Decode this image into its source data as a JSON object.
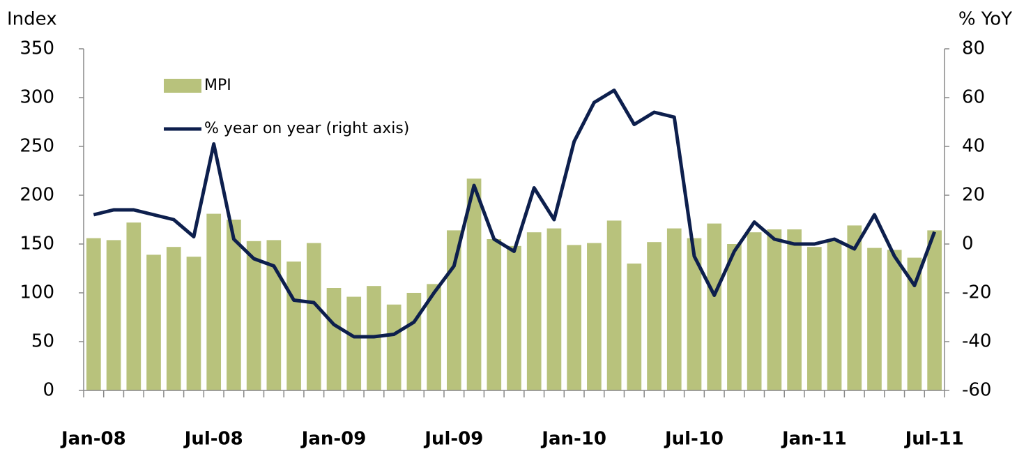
{
  "chart_data": {
    "type": "bar-line",
    "y_label": "Index",
    "y2_label": "% YoY",
    "categories": [
      "Jan-08",
      null,
      null,
      null,
      null,
      null,
      "Jul-08",
      null,
      null,
      null,
      null,
      null,
      "Jan-09",
      null,
      null,
      null,
      null,
      null,
      "Jul-09",
      null,
      null,
      null,
      null,
      null,
      "Jan-10",
      null,
      null,
      null,
      null,
      null,
      "Jul-10",
      null,
      null,
      null,
      null,
      null,
      "Jan-11",
      null,
      null,
      null,
      null,
      null,
      "Jul-11"
    ],
    "series": [
      {
        "name": "MPI",
        "type": "bar",
        "color": "#b8c27c",
        "axis": "y",
        "values": [
          156,
          154,
          172,
          139,
          147,
          137,
          181,
          175,
          153,
          154,
          132,
          151,
          105,
          96,
          107,
          88,
          100,
          109,
          164,
          217,
          155,
          148,
          162,
          166,
          149,
          151,
          174,
          130,
          152,
          166,
          156,
          171,
          150,
          162,
          165,
          165,
          147,
          154,
          169,
          146,
          144,
          136,
          164
        ]
      },
      {
        "name": "% year on year (right axis)",
        "type": "line",
        "color": "#0d1f4d",
        "axis": "y2",
        "values": [
          12,
          14,
          14,
          12,
          10,
          3,
          41,
          2,
          -6,
          -9,
          -23,
          -24,
          -33,
          -38,
          -38,
          -37,
          -32,
          -20,
          -9,
          24,
          2,
          -3,
          23,
          10,
          42,
          58,
          63,
          49,
          54,
          52,
          -5,
          -21,
          -3,
          9,
          2,
          0,
          0,
          2,
          -2,
          12,
          -5,
          -17,
          5
        ]
      }
    ],
    "ylim": [
      0,
      350
    ],
    "yticks": [
      0,
      50,
      100,
      150,
      200,
      250,
      300,
      350
    ],
    "y2lim": [
      -60,
      80
    ],
    "y2ticks": [
      -60,
      -40,
      -20,
      0,
      20,
      40,
      60,
      80
    ],
    "legend": "top-left"
  }
}
